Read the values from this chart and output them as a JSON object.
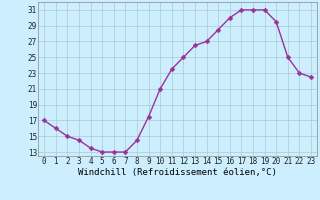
{
  "x": [
    0,
    1,
    2,
    3,
    4,
    5,
    6,
    7,
    8,
    9,
    10,
    11,
    12,
    13,
    14,
    15,
    16,
    17,
    18,
    19,
    20,
    21,
    22,
    23
  ],
  "y": [
    17,
    16,
    15,
    14.5,
    13.5,
    13,
    13,
    13,
    14.5,
    17.5,
    21,
    23.5,
    25,
    26.5,
    27,
    28.5,
    30,
    31,
    31,
    31,
    29.5,
    25,
    23,
    22.5
  ],
  "line_color": "#993399",
  "marker_color": "#993399",
  "bg_color": "#cceeff",
  "grid_color": "#aacccc",
  "xlabel": "Windchill (Refroidissement éolien,°C)",
  "yticks": [
    13,
    15,
    17,
    19,
    21,
    23,
    25,
    27,
    29,
    31
  ],
  "xticks": [
    0,
    1,
    2,
    3,
    4,
    5,
    6,
    7,
    8,
    9,
    10,
    11,
    12,
    13,
    14,
    15,
    16,
    17,
    18,
    19,
    20,
    21,
    22,
    23
  ],
  "ylim": [
    12.5,
    32
  ],
  "xlim": [
    -0.5,
    23.5
  ],
  "xlabel_fontsize": 6.5,
  "tick_fontsize": 5.5,
  "marker_size": 2.5,
  "line_width": 1.0,
  "spine_color": "#888888"
}
